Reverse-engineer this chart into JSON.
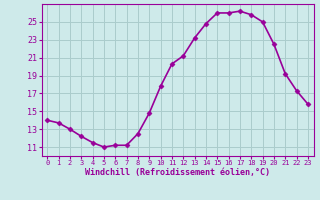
{
  "x": [
    0,
    1,
    2,
    3,
    4,
    5,
    6,
    7,
    8,
    9,
    10,
    11,
    12,
    13,
    14,
    15,
    16,
    17,
    18,
    19,
    20,
    21,
    22,
    23
  ],
  "y": [
    14.0,
    13.7,
    13.0,
    12.2,
    11.5,
    11.0,
    11.2,
    11.2,
    12.5,
    14.8,
    17.8,
    20.3,
    21.2,
    23.2,
    24.8,
    26.0,
    26.0,
    26.2,
    25.8,
    25.0,
    22.5,
    19.2,
    17.3,
    15.8
  ],
  "line_color": "#990099",
  "marker": "D",
  "markersize": 2.5,
  "bg_color": "#ceeaea",
  "grid_color": "#aacccc",
  "xlabel": "Windchill (Refroidissement éolien,°C)",
  "xlabel_color": "#990099",
  "tick_color": "#990099",
  "ylim": [
    10.0,
    27.0
  ],
  "xlim": [
    -0.5,
    23.5
  ],
  "yticks": [
    11,
    13,
    15,
    17,
    19,
    21,
    23,
    25
  ],
  "xticks": [
    0,
    1,
    2,
    3,
    4,
    5,
    6,
    7,
    8,
    9,
    10,
    11,
    12,
    13,
    14,
    15,
    16,
    17,
    18,
    19,
    20,
    21,
    22,
    23
  ],
  "linewidth": 1.2,
  "axis_line_color": "#990099"
}
